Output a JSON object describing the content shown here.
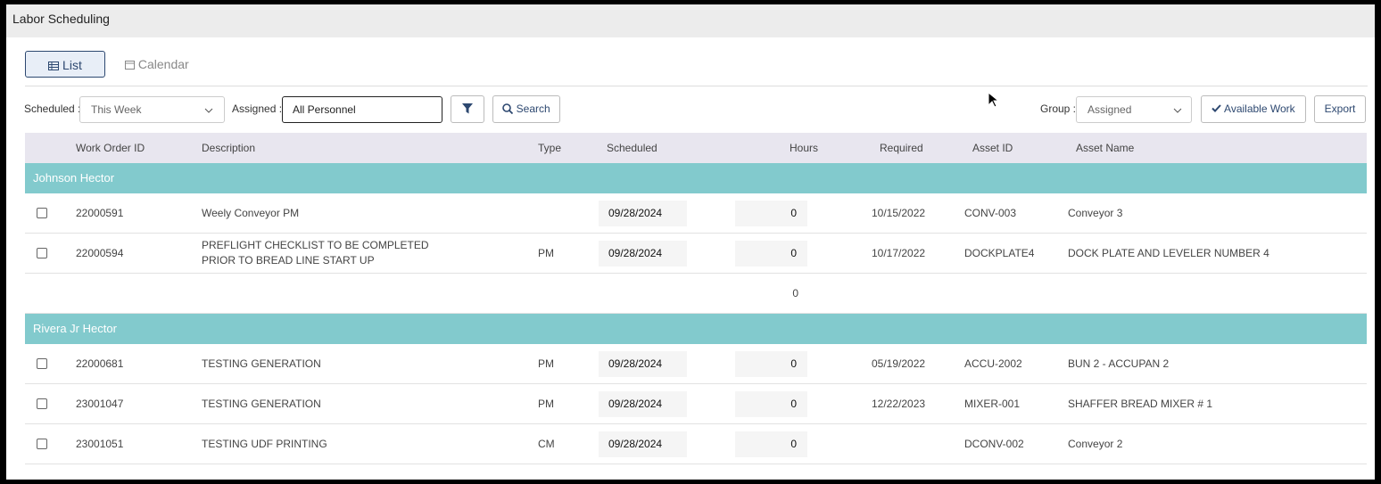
{
  "header": {
    "title": "Labor Scheduling"
  },
  "tabs": [
    "List",
    "Calendar"
  ],
  "filters": {
    "scheduled_label": "Scheduled :",
    "scheduled_value": "This Week",
    "assigned_label": "Assigned :",
    "assigned_value": "All Personnel",
    "search": "Search",
    "group_label": "Group :",
    "group_value": "Assigned",
    "available_work": "Available Work",
    "export": "Export"
  },
  "table": {
    "columns": [
      "Work Order ID",
      "Description",
      "Type",
      "Scheduled",
      "Hours",
      "Required",
      "Asset ID",
      "Asset Name"
    ],
    "groups": [
      {
        "name": "Johnson Hector",
        "total_hours": 0,
        "rows": [
          {
            "id": "22000591",
            "description": "Weely Conveyor PM",
            "scheduled": "09/28/2024",
            "hours": 0,
            "required": "10/15/2022",
            "asset_id": "CONV-003",
            "asset_name": "Conveyor 3"
          },
          {
            "id": "22000594",
            "description": "PREFLIGHT CHECKLIST TO BE COMPLETED PRIOR TO BREAD LINE START UP",
            "type": "PM",
            "scheduled": "09/28/2024",
            "hours": 0,
            "required": "10/17/2022",
            "asset_id": "DOCKPLATE4",
            "asset_name": "DOCK PLATE AND LEVELER NUMBER 4"
          }
        ]
      },
      {
        "name": "Rivera Jr Hector",
        "total_hours": 0,
        "rows": [
          {
            "id": "22000681",
            "description": "TESTING GENERATION",
            "type": "PM",
            "scheduled": "09/28/2024",
            "hours": 0,
            "required": "05/19/2022",
            "asset_id": "ACCU-2002",
            "asset_name": "BUN 2 - ACCUPAN 2"
          },
          {
            "id": "23001047",
            "description": "TESTING GENERATION",
            "type": "PM",
            "scheduled": "09/28/2024",
            "hours": 0,
            "required": "12/22/2023",
            "asset_id": "MIXER-001",
            "asset_name": "SHAFFER BREAD MIXER # 1"
          },
          {
            "id": "23001051",
            "description": "TESTING UDF PRINTING",
            "type": "CM",
            "scheduled": "09/28/2024",
            "hours": 0,
            "asset_id": "DCONV-002",
            "asset_name": "Conveyor 2"
          }
        ]
      }
    ]
  }
}
